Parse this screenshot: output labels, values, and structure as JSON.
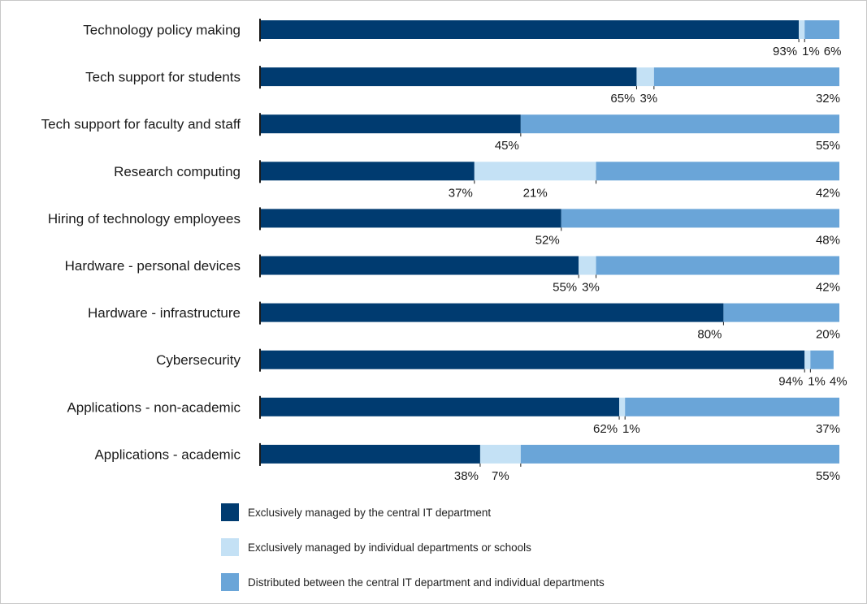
{
  "chart_data": {
    "type": "bar",
    "orientation": "horizontal",
    "stacked": true,
    "categories": [
      "Technology policy making",
      "Tech support for students",
      "Tech support for faculty and staff",
      "Research computing",
      "Hiring of technology employees",
      "Hardware - personal devices",
      "Hardware - infrastructure",
      "Cybersecurity",
      "Applications - non-academic",
      "Applications - academic"
    ],
    "series": [
      {
        "name": "Exclusively managed by the central IT department",
        "color": "#003b70",
        "values": [
          93,
          65,
          45,
          37,
          52,
          55,
          80,
          94,
          62,
          38
        ]
      },
      {
        "name": "Exclusively managed by individual departments or schools",
        "color": "#c4e1f5",
        "values": [
          1,
          3,
          0,
          21,
          0,
          3,
          0,
          1,
          1,
          7
        ]
      },
      {
        "name": "Distributed between the central IT department and individual departments",
        "color": "#6aa5d8",
        "values": [
          6,
          32,
          55,
          42,
          48,
          42,
          20,
          4,
          37,
          55
        ]
      }
    ],
    "labels": [
      [
        "93%",
        "1%",
        "6%"
      ],
      [
        "65%",
        "3%",
        "32%"
      ],
      [
        "45%",
        null,
        "55%"
      ],
      [
        "37%",
        "21%",
        "42%"
      ],
      [
        "52%",
        null,
        "48%"
      ],
      [
        "55%",
        "3%",
        "42%"
      ],
      [
        "80%",
        null,
        "20%"
      ],
      [
        "94%",
        "1%",
        "4%"
      ],
      [
        "62%",
        "1%",
        "37%"
      ],
      [
        "38%",
        "7%",
        "55%"
      ]
    ],
    "xlim": [
      0,
      100
    ],
    "legend_position": "bottom-center"
  }
}
